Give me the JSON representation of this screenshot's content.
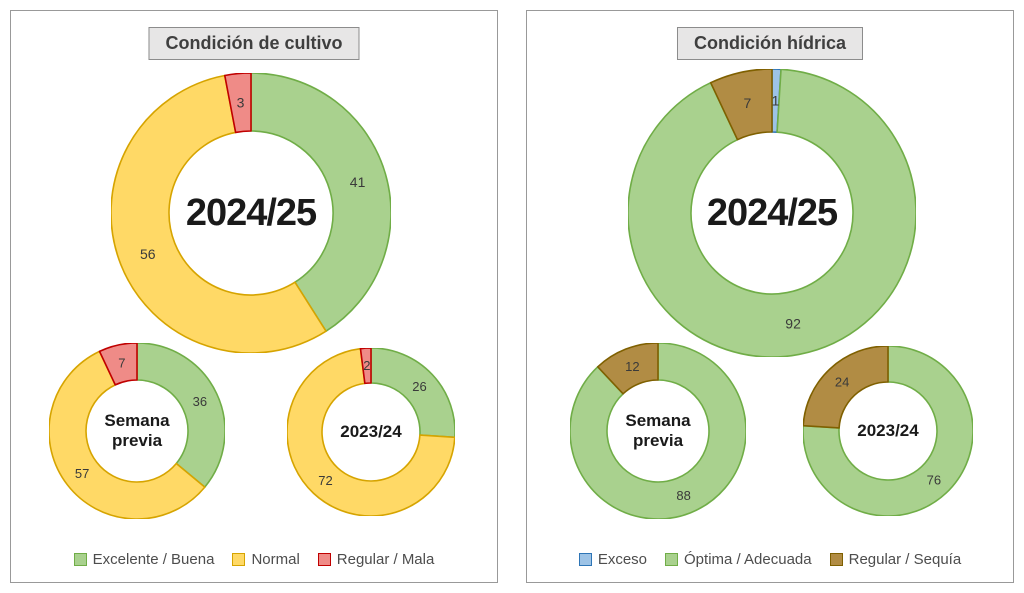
{
  "colors": {
    "excelente": {
      "fill": "#a9d18e",
      "stroke": "#70ad47"
    },
    "normal": {
      "fill": "#ffd966",
      "stroke": "#d6a400"
    },
    "regular_mala": {
      "fill": "#ef8b87",
      "stroke": "#c00000"
    },
    "exceso": {
      "fill": "#9dc3e6",
      "stroke": "#2e75b6"
    },
    "optima": {
      "fill": "#a9d18e",
      "stroke": "#70ad47"
    },
    "regular_sequia": {
      "fill": "#b18c44",
      "stroke": "#7f6000"
    }
  },
  "panels": [
    {
      "title": "Condición de cultivo",
      "legend": [
        {
          "label": "Excelente / Buena",
          "color_key": "excelente"
        },
        {
          "label": "Normal",
          "color_key": "normal"
        },
        {
          "label": "Regular / Mala",
          "color_key": "regular_mala"
        }
      ]
    },
    {
      "title": "Condición hídrica",
      "legend": [
        {
          "label": "Exceso",
          "color_key": "exceso"
        },
        {
          "label": "Óptima / Adecuada",
          "color_key": "optima"
        },
        {
          "label": "Regular / Sequía",
          "color_key": "regular_sequia"
        }
      ]
    }
  ],
  "chart_data": [
    {
      "type": "pie",
      "subtype": "donut",
      "panel": "Condición de cultivo",
      "center_label": "2024/25",
      "categories": [
        "Excelente / Buena",
        "Normal",
        "Regular / Mala"
      ],
      "values": [
        41,
        56,
        3
      ],
      "color_keys": [
        "excelente",
        "normal",
        "regular_mala"
      ],
      "legend_position": "bottom"
    },
    {
      "type": "pie",
      "subtype": "donut",
      "panel": "Condición de cultivo",
      "center_label": "Semana previa",
      "categories": [
        "Excelente / Buena",
        "Normal",
        "Regular / Mala"
      ],
      "values": [
        36,
        57,
        7
      ],
      "color_keys": [
        "excelente",
        "normal",
        "regular_mala"
      ]
    },
    {
      "type": "pie",
      "subtype": "donut",
      "panel": "Condición de cultivo",
      "center_label": "2023/24",
      "categories": [
        "Excelente / Buena",
        "Normal",
        "Regular / Mala"
      ],
      "values": [
        26,
        72,
        2
      ],
      "color_keys": [
        "excelente",
        "normal",
        "regular_mala"
      ]
    },
    {
      "type": "pie",
      "subtype": "donut",
      "panel": "Condición hídrica",
      "center_label": "2024/25",
      "categories": [
        "Exceso",
        "Óptima / Adecuada",
        "Regular / Sequía"
      ],
      "values": [
        1,
        92,
        7
      ],
      "color_keys": [
        "exceso",
        "optima",
        "regular_sequia"
      ],
      "legend_position": "bottom"
    },
    {
      "type": "pie",
      "subtype": "donut",
      "panel": "Condición hídrica",
      "center_label": "Semana previa",
      "categories": [
        "Óptima / Adecuada",
        "Regular / Sequía"
      ],
      "values": [
        88,
        12
      ],
      "color_keys": [
        "optima",
        "regular_sequia"
      ]
    },
    {
      "type": "pie",
      "subtype": "donut",
      "panel": "Condición hídrica",
      "center_label": "2023/24",
      "categories": [
        "Óptima / Adecuada",
        "Regular / Sequía"
      ],
      "values": [
        76,
        24
      ],
      "color_keys": [
        "optima",
        "regular_sequia"
      ]
    }
  ]
}
